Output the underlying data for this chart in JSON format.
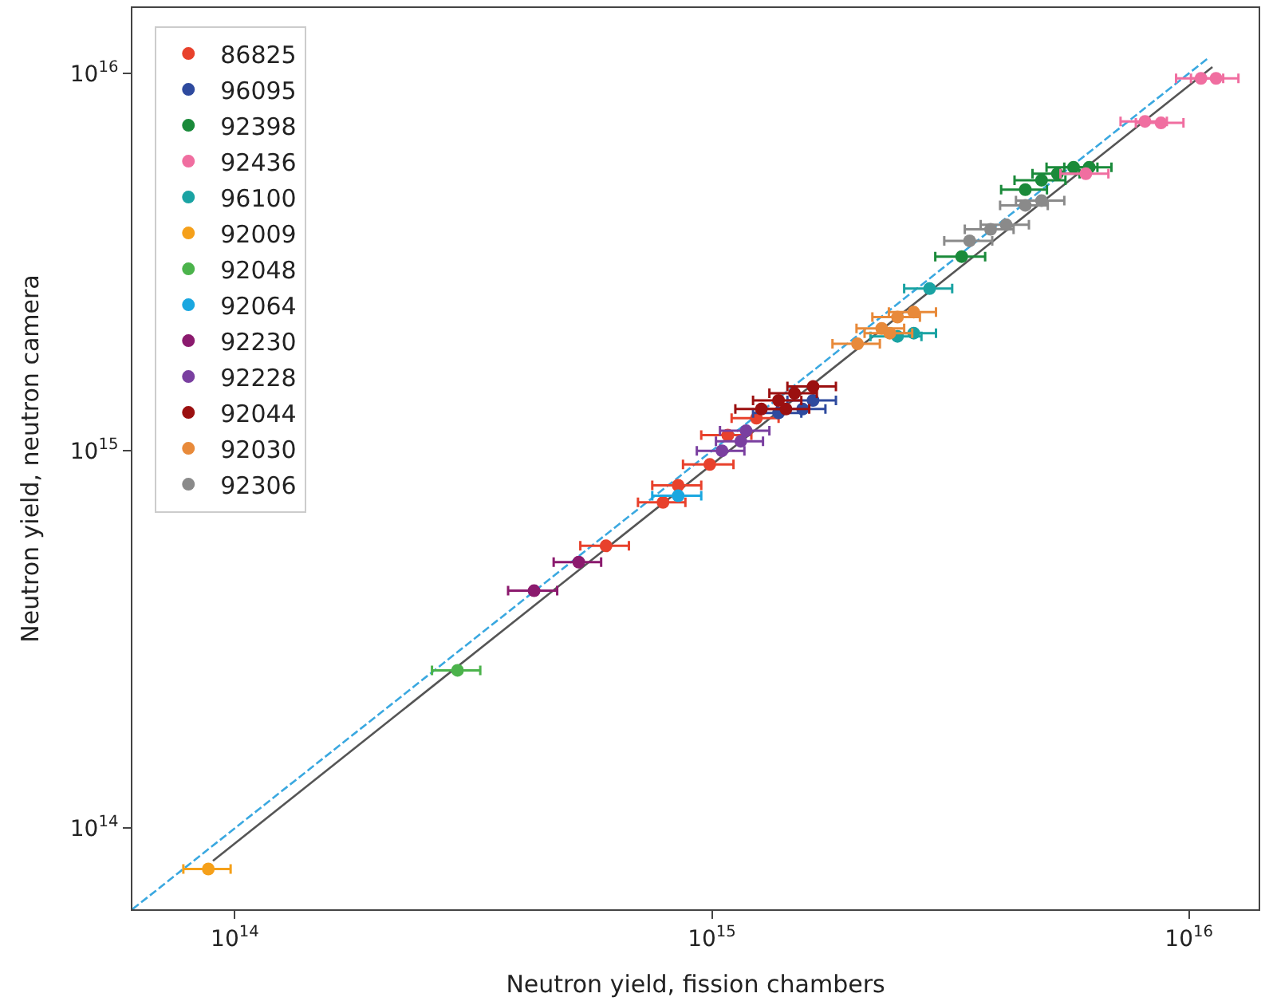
{
  "chart_data": {
    "type": "scatter",
    "xlabel": "Neutron yield, fission chambers",
    "ylabel": "Neutron yield, neutron camera",
    "log": "xy",
    "legend": "top left",
    "xlim": [
      61000000000000.0,
      1.4e+16
    ],
    "ylim": [
      61000000000000.0,
      1.49e+16
    ],
    "xticks": [
      {
        "value": 100000000000000.0,
        "label": "10$^{14}$"
      },
      {
        "value": 1000000000000000.0,
        "label": "10$^{15}$"
      },
      {
        "value": 1e+16,
        "label": "10$^{16}$"
      }
    ],
    "yticks": [
      {
        "value": 100000000000000.0,
        "label": "10$^{14}$"
      },
      {
        "value": 1000000000000000.0,
        "label": "10$^{15}$"
      },
      {
        "value": 1e+16,
        "label": "10$^{16}$"
      }
    ],
    "series": [
      {
        "type": "line",
        "color": "#3aa8e0",
        "line_style": "dashed",
        "marker": "none",
        "x": [
          61000000000000.0,
          1.1e+16
        ],
        "values": [
          61000000000000.0,
          1.1e+16
        ]
      },
      {
        "type": "line",
        "color": "#555555",
        "line_style": "solid",
        "marker": "none",
        "x": [
          90000000000000.0,
          1.12e+16
        ],
        "values": [
          82000000000000.0,
          1.04e+16
        ]
      },
      {
        "name": "86825",
        "marker": "circle",
        "color": "#e8412c",
        "x": [
          600000000000000.0,
          790000000000000.0,
          850000000000000.0,
          990000000000000.0,
          1080000000000000.0,
          1240000000000000.0
        ],
        "values": [
          560000000000000.0,
          730000000000000.0,
          810000000000000.0,
          920000000000000.0,
          1100000000000000.0,
          1220000000000000.0
        ],
        "xerrors": [
          70000000000000.0,
          90000000000000.0,
          100000000000000.0,
          120000000000000.0,
          130000000000000.0,
          140000000000000.0
        ]
      },
      {
        "name": "96095",
        "color": "#2e4a9e",
        "x": [
          1380000000000000.0,
          1550000000000000.0,
          1630000000000000.0
        ],
        "values": [
          1260000000000000.0,
          1290000000000000.0,
          1360000000000000.0
        ],
        "xerrors": [
          160000000000000.0,
          180000000000000.0,
          190000000000000.0
        ]
      },
      {
        "name": "92398",
        "color": "#1a8a3a",
        "x": [
          3340000000000000.0,
          4540000000000000.0,
          4910000000000000.0,
          5300000000000000.0,
          5730000000000000.0,
          6180000000000000.0
        ],
        "values": [
          3270000000000000.0,
          4920000000000000.0,
          5210000000000000.0,
          5420000000000000.0,
          5640000000000000.0,
          5640000000000000.0
        ],
        "xerrors": [
          400000000000000.0,
          500000000000000.0,
          600000000000000.0,
          600000000000000.0,
          700000000000000.0,
          700000000000000.0
        ]
      },
      {
        "name": "92436",
        "color": "#f06ea0",
        "x": [
          6080000000000000.0,
          8090000000000000.0,
          8740000000000000.0,
          1.06e+16,
          1.14e+16
        ],
        "values": [
          5420000000000000.0,
          7460000000000000.0,
          7390000000000000.0,
          9700000000000000.0,
          9700000000000000.0
        ],
        "xerrors": [
          700000000000000.0,
          900000000000000.0,
          1000000000000000.0,
          1200000000000000.0,
          1300000000000000.0
        ]
      },
      {
        "name": "96100",
        "color": "#1aa3a3",
        "x": [
          2450000000000000.0,
          2650000000000000.0,
          2860000000000000.0
        ],
        "values": [
          2010000000000000.0,
          2050000000000000.0,
          2690000000000000.0
        ],
        "xerrors": [
          300000000000000.0,
          300000000000000.0,
          330000000000000.0
        ]
      },
      {
        "name": "92009",
        "color": "#f5a01a",
        "x": [
          88000000000000.0
        ],
        "values": [
          78000000000000.0
        ],
        "xerrors": [
          10000000000000.0
        ]
      },
      {
        "name": "92048",
        "color": "#4bb34b",
        "x": [
          293000000000000.0
        ],
        "values": [
          262000000000000.0
        ],
        "xerrors": [
          34000000000000.0
        ]
      },
      {
        "name": "92064",
        "color": "#1aa7e0",
        "x": [
          850000000000000.0
        ],
        "values": [
          760000000000000.0
        ],
        "xerrors": [
          100000000000000.0
        ]
      },
      {
        "name": "92230",
        "color": "#8b1a6e",
        "x": [
          424000000000000.0,
          526000000000000.0
        ],
        "values": [
          426000000000000.0,
          507000000000000.0
        ],
        "xerrors": [
          50000000000000.0,
          60000000000000.0
        ]
      },
      {
        "name": "92228",
        "color": "#7a3fa0",
        "x": [
          1050000000000000.0,
          1150000000000000.0,
          1180000000000000.0
        ],
        "values": [
          1000000000000000.0,
          1060000000000000.0,
          1130000000000000.0
        ],
        "xerrors": [
          120000000000000.0,
          130000000000000.0,
          140000000000000.0
        ]
      },
      {
        "name": "92044",
        "color": "#9b1010",
        "x": [
          1270000000000000.0,
          1380000000000000.0,
          1430000000000000.0,
          1490000000000000.0,
          1630000000000000.0
        ],
        "values": [
          1290000000000000.0,
          1360000000000000.0,
          1290000000000000.0,
          1420000000000000.0,
          1480000000000000.0
        ],
        "xerrors": [
          150000000000000.0,
          160000000000000.0,
          170000000000000.0,
          170000000000000.0,
          190000000000000.0
        ]
      },
      {
        "name": "92030",
        "color": "#e88a3a",
        "x": [
          2020000000000000.0,
          2270000000000000.0,
          2360000000000000.0,
          2450000000000000.0,
          2650000000000000.0
        ],
        "values": [
          1920000000000000.0,
          2110000000000000.0,
          2050000000000000.0,
          2260000000000000.0,
          2330000000000000.0
        ],
        "xerrors": [
          230000000000000.0,
          260000000000000.0,
          270000000000000.0,
          280000000000000.0,
          300000000000000.0
        ]
      },
      {
        "name": "92306",
        "color": "#8a8a8a",
        "x": [
          3470000000000000.0,
          3840000000000000.0,
          4140000000000000.0,
          4540000000000000.0,
          4910000000000000.0
        ],
        "values": [
          3600000000000000.0,
          3860000000000000.0,
          3970000000000000.0,
          4470000000000000.0,
          4600000000000000.0
        ],
        "xerrors": [
          400000000000000.0,
          450000000000000.0,
          480000000000000.0,
          520000000000000.0,
          570000000000000.0
        ]
      }
    ]
  }
}
